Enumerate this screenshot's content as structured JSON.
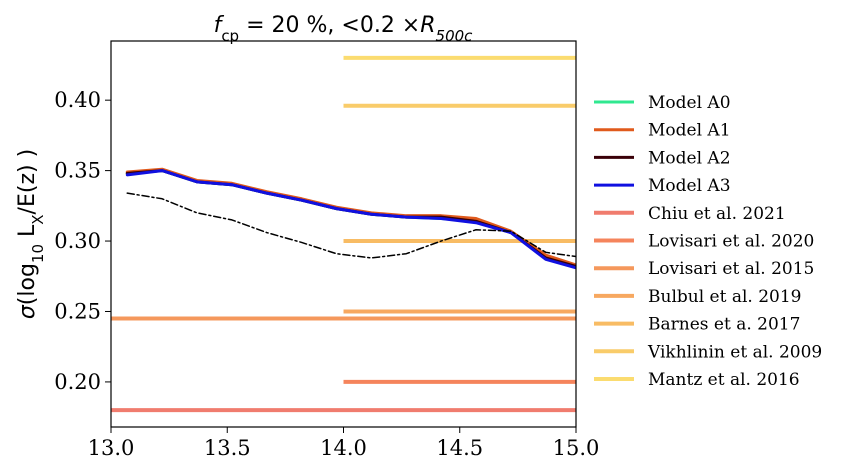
{
  "chart_data": {
    "type": "line",
    "title": {
      "parts": [
        {
          "text": "f",
          "style": "italic"
        },
        {
          "text": "cp",
          "style": "sub"
        },
        {
          "text": " = 20 %, <0.2 ×",
          "style": "normal"
        },
        {
          "text": "R",
          "style": "italic"
        },
        {
          "text": "500c",
          "style": "sub-italic"
        }
      ]
    },
    "ylabel": {
      "parts": [
        {
          "text": "σ",
          "style": "italic"
        },
        {
          "text": "(log",
          "style": "normal"
        },
        {
          "text": "10",
          "style": "sub"
        },
        {
          "text": " L",
          "style": "normal"
        },
        {
          "text": "X",
          "style": "sub"
        },
        {
          "text": "/E(z) )",
          "style": "normal"
        }
      ]
    },
    "xlabel": "",
    "xlim": [
      13.0,
      15.0
    ],
    "ylim": [
      0.168,
      0.442
    ],
    "xticks": [
      "13.0",
      "13.5",
      "14.0",
      "14.5",
      "15.0"
    ],
    "yticks": [
      "0.20",
      "0.25",
      "0.30",
      "0.35",
      "0.40"
    ],
    "grid": false,
    "legend_position": "outside-right",
    "series": [
      {
        "name": "Model A0",
        "color": "#30e890",
        "width": 3,
        "x": [
          13.07,
          13.22,
          13.37,
          13.52,
          13.67,
          13.82,
          13.97,
          14.12,
          14.27,
          14.42,
          14.57,
          14.72,
          14.87,
          15.0
        ],
        "y": [
          0.348,
          0.35,
          0.342,
          0.34,
          0.334,
          0.329,
          0.323,
          0.319,
          0.317,
          0.316,
          0.314,
          0.306,
          0.288,
          0.282
        ]
      },
      {
        "name": "Model A1",
        "color": "#e05a1c",
        "width": 3,
        "x": [
          13.07,
          13.22,
          13.37,
          13.52,
          13.67,
          13.82,
          13.97,
          14.12,
          14.27,
          14.42,
          14.57,
          14.72,
          14.87,
          15.0
        ],
        "y": [
          0.349,
          0.351,
          0.343,
          0.341,
          0.335,
          0.33,
          0.324,
          0.32,
          0.318,
          0.318,
          0.316,
          0.307,
          0.29,
          0.283
        ]
      },
      {
        "name": "Model A2",
        "color": "#3a0008",
        "width": 3,
        "x": [
          13.07,
          13.22,
          13.37,
          13.52,
          13.67,
          13.82,
          13.97,
          14.12,
          14.27,
          14.42,
          14.57,
          14.72,
          14.87,
          15.0
        ],
        "y": [
          0.348,
          0.35,
          0.342,
          0.34,
          0.334,
          0.329,
          0.323,
          0.319,
          0.317,
          0.317,
          0.314,
          0.306,
          0.288,
          0.282
        ]
      },
      {
        "name": "Model A3",
        "color": "#1010e0",
        "width": 3,
        "x": [
          13.07,
          13.22,
          13.37,
          13.52,
          13.67,
          13.82,
          13.97,
          14.12,
          14.27,
          14.42,
          14.57,
          14.72,
          14.87,
          15.0
        ],
        "y": [
          0.347,
          0.35,
          0.342,
          0.34,
          0.334,
          0.329,
          0.323,
          0.319,
          0.317,
          0.316,
          0.313,
          0.306,
          0.287,
          0.281
        ]
      },
      {
        "name": "",
        "color": "#000000",
        "width": 1.5,
        "dash": "7,3,2,3",
        "x": [
          13.07,
          13.22,
          13.37,
          13.52,
          13.67,
          13.82,
          13.97,
          14.12,
          14.27,
          14.42,
          14.57,
          14.72,
          14.87,
          15.0
        ],
        "y": [
          0.334,
          0.33,
          0.32,
          0.315,
          0.306,
          0.299,
          0.291,
          0.288,
          0.291,
          0.3,
          0.308,
          0.307,
          0.292,
          0.289
        ]
      }
    ],
    "reference_lines": [
      {
        "name": "Chiu et al. 2021",
        "color": "#f07c6e",
        "y": 0.18,
        "xmin": 13.0,
        "xmax": 15.0
      },
      {
        "name": "Lovisari et al. 2020",
        "color": "#f5845c",
        "y": 0.2,
        "xmin": 14.0,
        "xmax": 15.0
      },
      {
        "name": "Lovisari et al. 2015",
        "color": "#f5985c",
        "y": 0.245,
        "xmin": 13.0,
        "xmax": 15.0
      },
      {
        "name": "Bulbul et al. 2019",
        "color": "#f7a860",
        "y": 0.25,
        "xmin": 14.0,
        "xmax": 15.0
      },
      {
        "name": "Barnes et a. 2017",
        "color": "#f8bc64",
        "y": 0.3,
        "xmin": 14.0,
        "xmax": 15.0
      },
      {
        "name": "Vikhlinin et al. 2009",
        "color": "#f9cc6a",
        "y": 0.396,
        "xmin": 14.0,
        "xmax": 15.0
      },
      {
        "name": "Mantz et al. 2016",
        "color": "#fbdc70",
        "y": 0.43,
        "xmin": 14.0,
        "xmax": 15.0
      }
    ]
  }
}
